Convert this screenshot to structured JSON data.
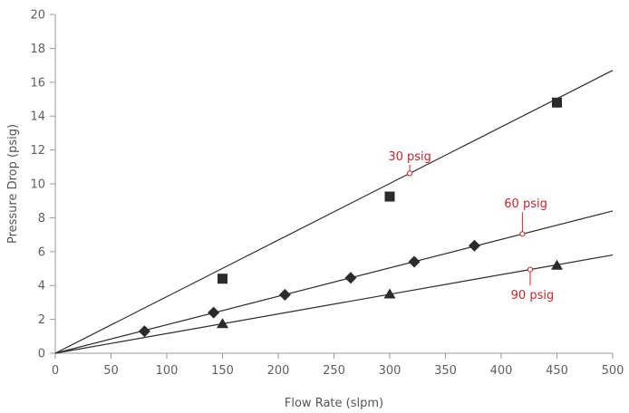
{
  "chart_data": {
    "type": "line",
    "title": "",
    "xlabel": "Flow Rate (slpm)",
    "ylabel": "Pressure Drop (psig)",
    "xlim": [
      0,
      500
    ],
    "ylim": [
      0,
      20
    ],
    "x_ticks": [
      "0",
      "50",
      "100",
      "150",
      "200",
      "250",
      "300",
      "350",
      "400",
      "450",
      "500"
    ],
    "y_ticks": [
      "0",
      "2",
      "4",
      "6",
      "8",
      "10",
      "12",
      "14",
      "16",
      "18",
      "20"
    ],
    "grid": false,
    "series": [
      {
        "marker": "square",
        "line": [
          [
            0,
            0
          ],
          [
            500,
            16.7
          ]
        ],
        "points": [
          [
            150,
            4.4
          ],
          [
            300,
            9.25
          ],
          [
            450,
            14.8
          ]
        ]
      },
      {
        "marker": "diamond",
        "line": [
          [
            0,
            0
          ],
          [
            500,
            8.4
          ]
        ],
        "points": [
          [
            80,
            1.3
          ],
          [
            142,
            2.4
          ],
          [
            206,
            3.45
          ],
          [
            265,
            4.45
          ],
          [
            322,
            5.4
          ],
          [
            376,
            6.35
          ]
        ]
      },
      {
        "marker": "triangle",
        "line": [
          [
            0,
            0
          ],
          [
            500,
            5.8
          ]
        ],
        "points": [
          [
            150,
            1.75
          ],
          [
            300,
            3.5
          ],
          [
            450,
            5.2
          ]
        ]
      }
    ],
    "annotations": [
      {
        "text": "30 psig",
        "series": 0,
        "x": 318,
        "label_x": 318,
        "label_y": 11.4
      },
      {
        "text": "60 psig",
        "series": 1,
        "x": 419,
        "label_x": 422,
        "label_y": 8.6
      },
      {
        "text": "90 psig",
        "series": 2,
        "x": 426,
        "label_x": 428,
        "label_y": 3.2
      }
    ],
    "colors": {
      "line": "#2b2b2b",
      "marker": "#2b2b2b",
      "axis": "#9a9a9a",
      "annotation": "#c1272d"
    }
  }
}
